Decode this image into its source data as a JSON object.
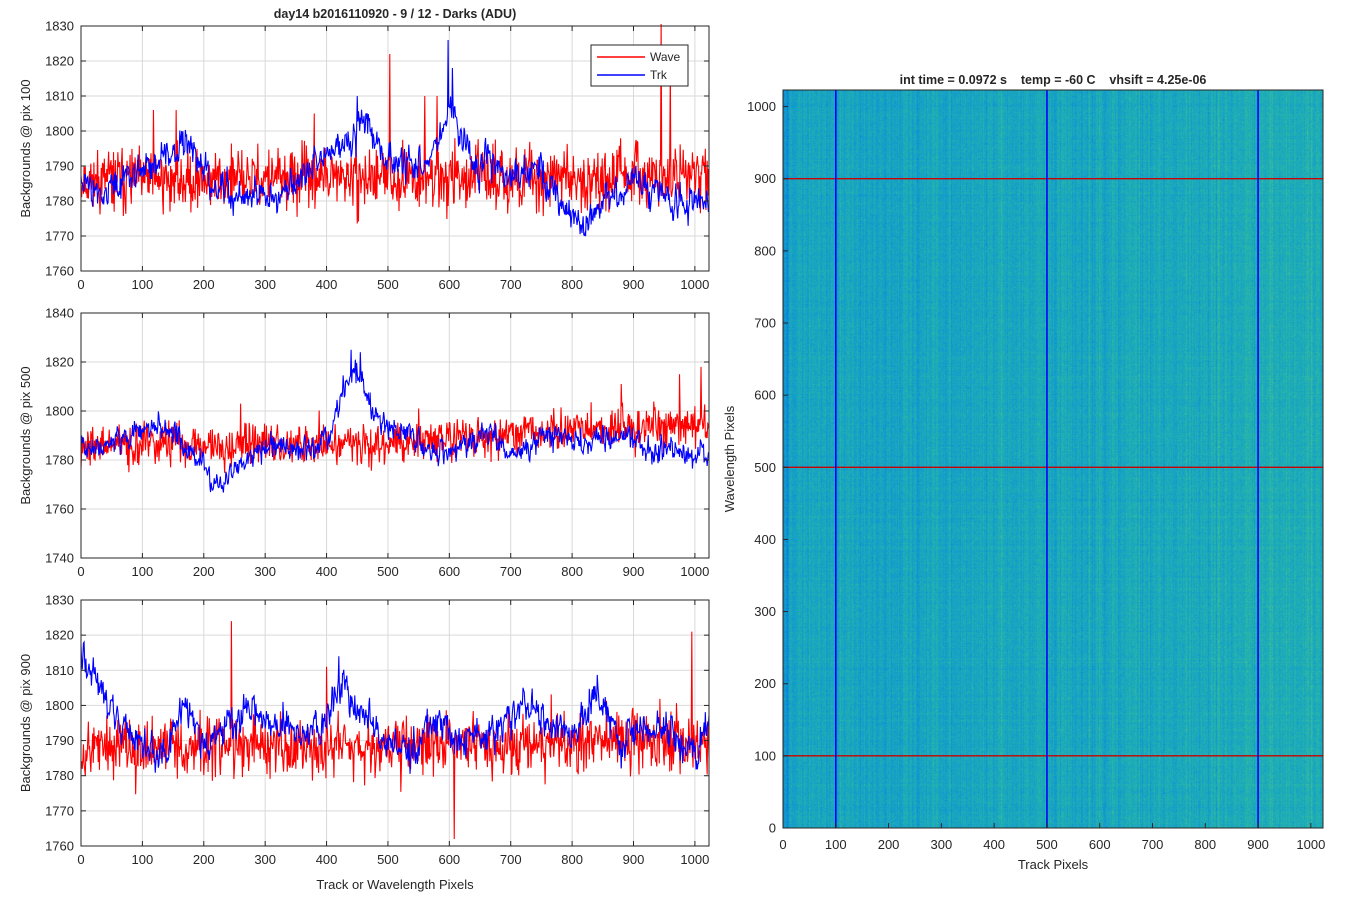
{
  "figure": {
    "title_left": "day14 b2016110920 - 9 / 12 - Darks (ADU)",
    "title_right": "int time = 0.0972 s    temp = -60 C    vhsift = 4.25e-06"
  },
  "legend": {
    "wave": "Wave",
    "trk": "Trk"
  },
  "colors": {
    "wave": "#ff0000",
    "trk": "#0000ff",
    "grid": "#d9d9d9",
    "axis": "#262626"
  },
  "chart_data": [
    {
      "type": "line",
      "ylabel": "Backgrounds @ pix 100",
      "xlabel": "",
      "xlim": [
        0,
        1023
      ],
      "ylim": [
        1760,
        1830
      ],
      "xticks": [
        0,
        100,
        200,
        300,
        400,
        500,
        600,
        700,
        800,
        900,
        1000
      ],
      "yticks": [
        1760,
        1770,
        1780,
        1790,
        1800,
        1810,
        1820,
        1830
      ],
      "grid": true,
      "legend": "top-right",
      "series": [
        {
          "name": "Wave",
          "color": "#ff0000",
          "mean": 1786,
          "noise": 8,
          "seed": 11,
          "anchors": [
            [
              0,
              1786
            ],
            [
              1023,
              1787
            ]
          ],
          "spikes": [
            [
              118,
              1806
            ],
            [
              155,
              1806
            ],
            [
              380,
              1805
            ],
            [
              503,
              1822
            ],
            [
              560,
              1810
            ],
            [
              580,
              1810
            ],
            [
              945,
              1832
            ],
            [
              960,
              1818
            ]
          ]
        },
        {
          "name": "Trk",
          "color": "#0000ff",
          "mean": 1786,
          "noise": 3.2,
          "seed": 23,
          "anchors": [
            [
              0,
              1787
            ],
            [
              40,
              1782
            ],
            [
              90,
              1788
            ],
            [
              140,
              1793
            ],
            [
              175,
              1797
            ],
            [
              210,
              1786
            ],
            [
              260,
              1781
            ],
            [
              320,
              1782
            ],
            [
              360,
              1787
            ],
            [
              390,
              1794
            ],
            [
              420,
              1795
            ],
            [
              460,
              1804
            ],
            [
              500,
              1792
            ],
            [
              550,
              1790
            ],
            [
              580,
              1796
            ],
            [
              600,
              1808
            ],
            [
              640,
              1792
            ],
            [
              700,
              1787
            ],
            [
              750,
              1790
            ],
            [
              790,
              1778
            ],
            [
              820,
              1774
            ],
            [
              860,
              1780
            ],
            [
              900,
              1786
            ],
            [
              960,
              1779
            ],
            [
              1023,
              1780
            ]
          ],
          "spikes": [
            [
              450,
              1810
            ],
            [
              598,
              1826
            ],
            [
              605,
              1818
            ]
          ]
        }
      ]
    },
    {
      "type": "line",
      "ylabel": "Backgrounds @ pix 500",
      "xlabel": "",
      "xlim": [
        0,
        1023
      ],
      "ylim": [
        1740,
        1840
      ],
      "xticks": [
        0,
        100,
        200,
        300,
        400,
        500,
        600,
        700,
        800,
        900,
        1000
      ],
      "yticks": [
        1740,
        1760,
        1780,
        1800,
        1820,
        1840
      ],
      "grid": true,
      "legend": "",
      "series": [
        {
          "name": "Wave",
          "color": "#ff0000",
          "mean": 1788,
          "noise": 8,
          "seed": 37,
          "anchors": [
            [
              0,
              1786
            ],
            [
              500,
              1787
            ],
            [
              800,
              1792
            ],
            [
              1023,
              1795
            ]
          ],
          "spikes": [
            [
              260,
              1803
            ],
            [
              550,
              1801
            ],
            [
              880,
              1811
            ],
            [
              975,
              1815
            ],
            [
              1010,
              1818
            ]
          ]
        },
        {
          "name": "Trk",
          "color": "#0000ff",
          "mean": 1786,
          "noise": 3.5,
          "seed": 41,
          "anchors": [
            [
              0,
              1785
            ],
            [
              60,
              1787
            ],
            [
              100,
              1793
            ],
            [
              150,
              1791
            ],
            [
              180,
              1784
            ],
            [
              210,
              1772
            ],
            [
              230,
              1768
            ],
            [
              260,
              1780
            ],
            [
              300,
              1785
            ],
            [
              340,
              1785
            ],
            [
              380,
              1785
            ],
            [
              410,
              1793
            ],
            [
              430,
              1810
            ],
            [
              450,
              1818
            ],
            [
              470,
              1802
            ],
            [
              500,
              1793
            ],
            [
              540,
              1790
            ],
            [
              580,
              1783
            ],
            [
              620,
              1786
            ],
            [
              660,
              1790
            ],
            [
              700,
              1784
            ],
            [
              760,
              1790
            ],
            [
              820,
              1788
            ],
            [
              880,
              1790
            ],
            [
              940,
              1784
            ],
            [
              1000,
              1782
            ],
            [
              1023,
              1783
            ]
          ],
          "spikes": [
            [
              440,
              1825
            ],
            [
              455,
              1824
            ]
          ]
        }
      ]
    },
    {
      "type": "line",
      "ylabel": "Backgrounds @ pix 900",
      "xlabel": "Track or Wavelength Pixels",
      "xlim": [
        0,
        1023
      ],
      "ylim": [
        1760,
        1830
      ],
      "xticks": [
        0,
        100,
        200,
        300,
        400,
        500,
        600,
        700,
        800,
        900,
        1000
      ],
      "yticks": [
        1760,
        1770,
        1780,
        1790,
        1800,
        1810,
        1820,
        1830
      ],
      "grid": true,
      "legend": "",
      "series": [
        {
          "name": "Wave",
          "color": "#ff0000",
          "mean": 1788,
          "noise": 8,
          "seed": 53,
          "anchors": [
            [
              0,
              1788
            ],
            [
              1023,
              1790
            ]
          ],
          "spikes": [
            [
              245,
              1824
            ],
            [
              400,
              1811
            ],
            [
              608,
              1762
            ],
            [
              995,
              1821
            ]
          ]
        },
        {
          "name": "Trk",
          "color": "#0000ff",
          "mean": 1790,
          "noise": 3.5,
          "seed": 59,
          "anchors": [
            [
              0,
              1815
            ],
            [
              30,
              1808
            ],
            [
              60,
              1797
            ],
            [
              100,
              1789
            ],
            [
              140,
              1787
            ],
            [
              170,
              1800
            ],
            [
              200,
              1790
            ],
            [
              240,
              1794
            ],
            [
              280,
              1800
            ],
            [
              320,
              1795
            ],
            [
              360,
              1792
            ],
            [
              400,
              1796
            ],
            [
              430,
              1807
            ],
            [
              460,
              1797
            ],
            [
              500,
              1787
            ],
            [
              540,
              1788
            ],
            [
              580,
              1795
            ],
            [
              620,
              1788
            ],
            [
              680,
              1794
            ],
            [
              720,
              1801
            ],
            [
              750,
              1797
            ],
            [
              800,
              1792
            ],
            [
              840,
              1802
            ],
            [
              880,
              1788
            ],
            [
              920,
              1795
            ],
            [
              960,
              1793
            ],
            [
              1000,
              1785
            ],
            [
              1023,
              1798
            ]
          ],
          "spikes": [
            [
              5,
              1818
            ],
            [
              420,
              1814
            ]
          ]
        }
      ]
    },
    {
      "type": "heatmap",
      "title": "int time = 0.0972 s    temp = -60 C    vhsift = 4.25e-06",
      "xlabel": "Track Pixels",
      "ylabel": "Wavelength Pixels",
      "xlim": [
        0,
        1023
      ],
      "ylim": [
        0,
        1023
      ],
      "xticks": [
        0,
        100,
        200,
        300,
        400,
        500,
        600,
        700,
        800,
        900,
        1000
      ],
      "yticks": [
        0,
        100,
        200,
        300,
        400,
        500,
        600,
        700,
        800,
        900,
        1000
      ],
      "colormap": "parula",
      "marker_lines": {
        "vertical_at": [
          100,
          500,
          900
        ],
        "vertical_color": "#0000ff",
        "horizontal_at": [
          100,
          500,
          900
        ],
        "horizontal_color": "#cc0000"
      }
    }
  ]
}
